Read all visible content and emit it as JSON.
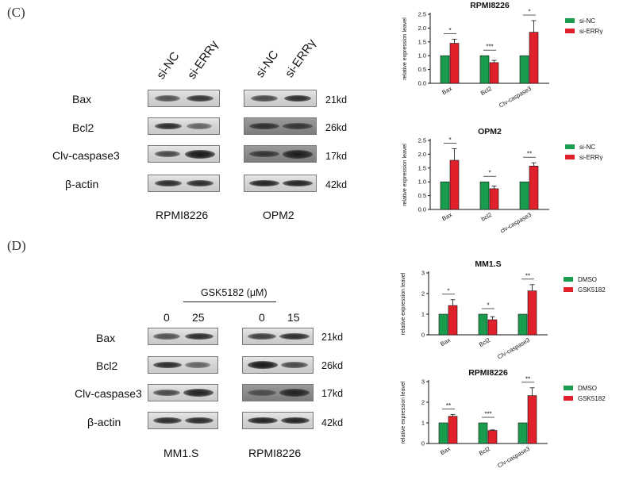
{
  "panels": {
    "C": {
      "letter": "(C)",
      "lanes_left": [
        "si-NC",
        "si-ERRγ"
      ],
      "lanes_right": [
        "si-NC",
        "si-ERRγ"
      ],
      "rows": [
        {
          "name": "Bax",
          "kd": "21kd"
        },
        {
          "name": "Bcl2",
          "kd": "26kd"
        },
        {
          "name": "Clv-caspase3",
          "kd": "17kd"
        },
        {
          "name": "β-actin",
          "kd": "42kd"
        }
      ],
      "cell_left": "RPMI8226",
      "cell_right": "OPM2"
    },
    "D": {
      "letter": "(D)",
      "treatment": "GSK5182 (μM)",
      "doses_left": [
        "0",
        "25"
      ],
      "doses_right": [
        "0",
        "15"
      ],
      "rows": [
        {
          "name": "Bax",
          "kd": "21kd"
        },
        {
          "name": "Bcl2",
          "kd": "26kd"
        },
        {
          "name": "Clv-caspase3",
          "kd": "17kd"
        },
        {
          "name": "β-actin",
          "kd": "42kd"
        }
      ],
      "cell_left": "MM1.S",
      "cell_right": "RPMI8226"
    }
  },
  "colors": {
    "control": "#1a9c4e",
    "treated": "#e0202a"
  },
  "chart_data": [
    {
      "type": "bar",
      "title": "RPMI8226",
      "ylabel": "relative expression leavel",
      "categories": [
        "Bax",
        "Bcl2",
        "Clv-caspase3"
      ],
      "ylim": [
        0,
        2.5
      ],
      "yticks": [
        "0.0",
        "0.5",
        "1.0",
        "1.5",
        "2.0",
        "2.5"
      ],
      "series": [
        {
          "name": "si-NC",
          "values": [
            1.0,
            1.0,
            1.0
          ],
          "errors": [
            0,
            0,
            0
          ]
        },
        {
          "name": "si-ERRγ",
          "values": [
            1.45,
            0.75,
            1.85
          ],
          "errors": [
            0.15,
            0.08,
            0.42
          ]
        }
      ],
      "significance": [
        "*",
        "***",
        "*"
      ],
      "legend": "top-right"
    },
    {
      "type": "bar",
      "title": "OPM2",
      "ylabel": "relative expression leavel",
      "categories": [
        "Bax",
        "bcl2",
        "clv-caspase3"
      ],
      "ylim": [
        0,
        2.5
      ],
      "yticks": [
        "0.0",
        "0.5",
        "1.0",
        "1.5",
        "2.0",
        "2.5"
      ],
      "series": [
        {
          "name": "si-NC",
          "values": [
            1.0,
            1.0,
            1.0
          ],
          "errors": [
            0,
            0,
            0
          ]
        },
        {
          "name": "si-ERRγ",
          "values": [
            1.78,
            0.75,
            1.57
          ],
          "errors": [
            0.42,
            0.1,
            0.12
          ]
        }
      ],
      "significance": [
        "*",
        "*",
        "**"
      ],
      "legend": "top-right"
    },
    {
      "type": "bar",
      "title": "MM1.S",
      "ylabel": "relative expression leavel",
      "categories": [
        "Bax",
        "Bcl2",
        "Clv-caspase3"
      ],
      "ylim": [
        0,
        3
      ],
      "yticks": [
        "0",
        "1",
        "2",
        "3"
      ],
      "series": [
        {
          "name": "DMSO",
          "values": [
            1.0,
            1.0,
            1.0
          ],
          "errors": [
            0,
            0,
            0
          ]
        },
        {
          "name": "GSK5182",
          "values": [
            1.42,
            0.73,
            2.13
          ],
          "errors": [
            0.28,
            0.15,
            0.3
          ]
        }
      ],
      "significance": [
        "*",
        "*",
        "**"
      ],
      "legend": "top-right"
    },
    {
      "type": "bar",
      "title": "RPMI8226",
      "ylabel": "relative expression leavel",
      "categories": [
        "Bax",
        "Bcl2",
        "Clv-caspase3"
      ],
      "ylim": [
        0,
        3
      ],
      "yticks": [
        "0",
        "1",
        "2",
        "3"
      ],
      "series": [
        {
          "name": "DMSO",
          "values": [
            1.0,
            1.0,
            1.0
          ],
          "errors": [
            0,
            0,
            0
          ]
        },
        {
          "name": "GSK5182",
          "values": [
            1.32,
            0.63,
            2.32
          ],
          "errors": [
            0.08,
            0.03,
            0.38
          ]
        }
      ],
      "significance": [
        "**",
        "***",
        "**"
      ],
      "legend": "top-right"
    }
  ]
}
